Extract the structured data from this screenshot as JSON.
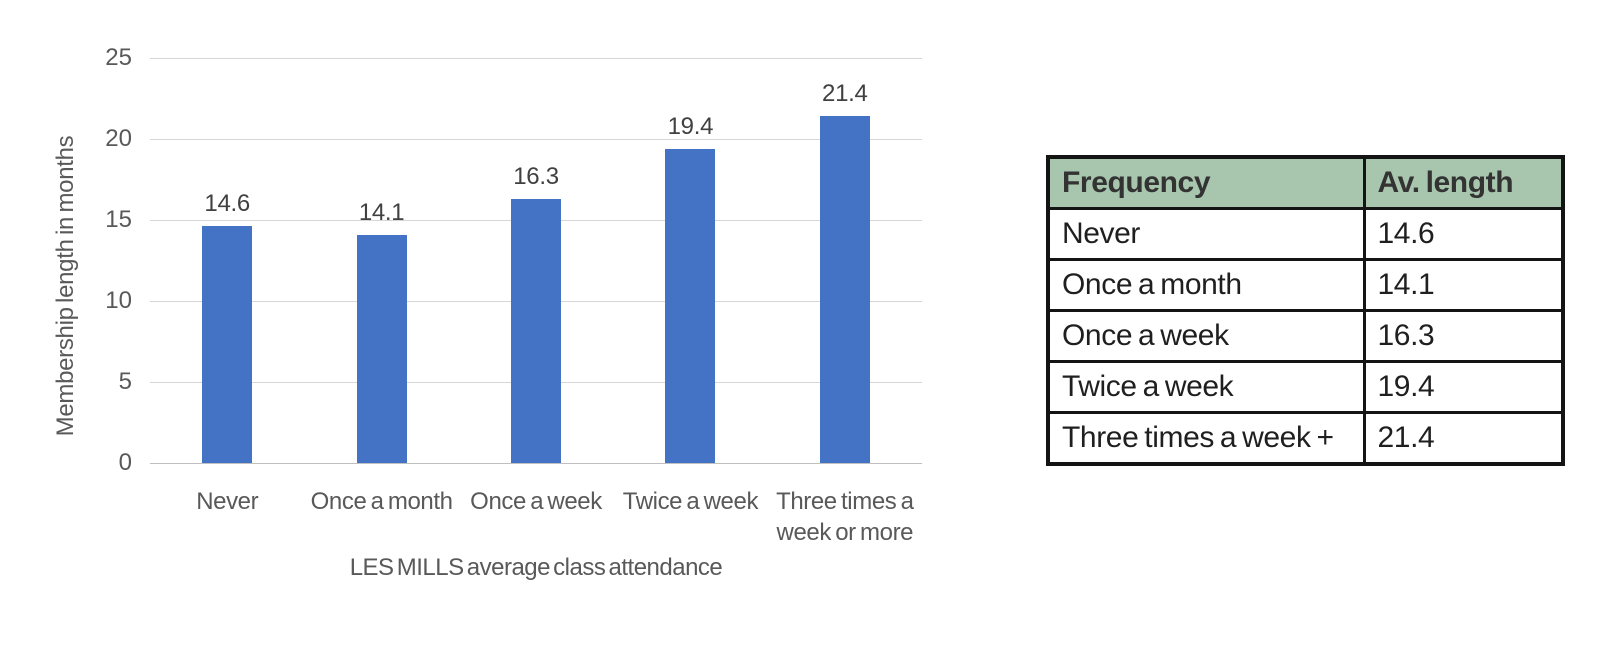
{
  "chart_data": {
    "type": "bar",
    "categories": [
      "Never",
      "Once a month",
      "Once a week",
      "Twice a week",
      "Three times a week or more"
    ],
    "values": [
      14.6,
      14.1,
      16.3,
      19.4,
      21.4
    ],
    "data_labels": [
      "14.6",
      "14.1",
      "16.3",
      "19.4",
      "21.4"
    ],
    "xlabel": "LES MILLS average class attendance",
    "ylabel": "Membership length in months",
    "ylim": [
      0,
      25
    ],
    "yticks": [
      0,
      5,
      10,
      15,
      20,
      25
    ],
    "grid": "horizontal",
    "legend": "none",
    "bar_color": "#4472c4"
  },
  "table": {
    "headers": [
      "Frequency",
      "Av. length"
    ],
    "rows": [
      {
        "frequency": "Never",
        "av_length": "14.6"
      },
      {
        "frequency": "Once a month",
        "av_length": "14.1"
      },
      {
        "frequency": "Once a week",
        "av_length": "16.3"
      },
      {
        "frequency": "Twice a week",
        "av_length": "19.4"
      },
      {
        "frequency": "Three times a week +",
        "av_length": "21.4"
      }
    ],
    "header_bg": "#a7c6ad"
  },
  "colors": {
    "bar": "#4472c4",
    "gridline": "#d6d6d6",
    "axis_text": "#595959",
    "data_label_text": "#404040",
    "table_border": "#141414",
    "table_header_bg": "#a7c6ad",
    "background": "#ffffff"
  }
}
